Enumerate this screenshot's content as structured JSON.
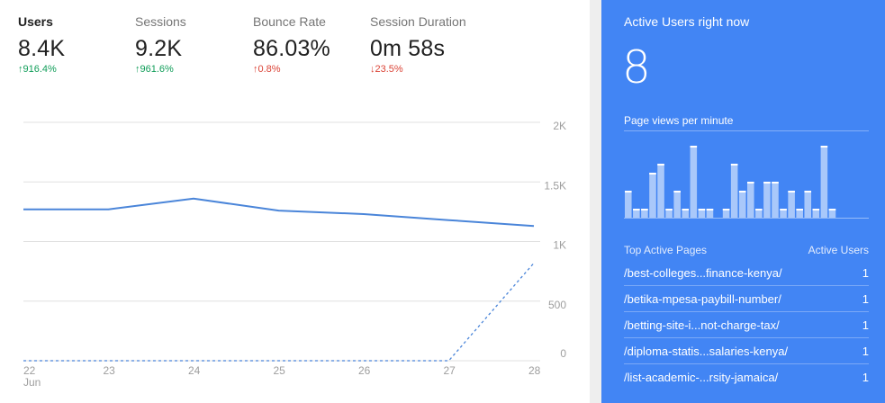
{
  "metrics": [
    {
      "label": "Users",
      "value": "8.4K",
      "change": "916.4%",
      "arrow": "↑",
      "dir": "up",
      "selected": true
    },
    {
      "label": "Sessions",
      "value": "9.2K",
      "change": "961.6%",
      "arrow": "↑",
      "dir": "up",
      "selected": false
    },
    {
      "label": "Bounce Rate",
      "value": "86.03%",
      "change": "0.8%",
      "arrow": "↑",
      "dir": "down",
      "selected": false
    },
    {
      "label": "Session Duration",
      "value": "0m 58s",
      "change": "23.5%",
      "arrow": "↓",
      "dir": "down",
      "selected": false
    }
  ],
  "chart_data": {
    "type": "line",
    "x": [
      "22",
      "23",
      "24",
      "25",
      "26",
      "27",
      "28"
    ],
    "x_sublabel": "Jun",
    "yticks": [
      "2K",
      "1.5K",
      "1K",
      "500",
      "0"
    ],
    "ylim": [
      0,
      2000
    ],
    "grid": true,
    "series": [
      {
        "values": [
          1270,
          1270,
          1360,
          1260,
          1230,
          1180,
          1130
        ],
        "style": "solid",
        "color": "#4a85d9"
      },
      {
        "values": [
          0,
          0,
          0,
          0,
          0,
          0,
          820
        ],
        "style": "dashed",
        "color": "#4a85d9"
      }
    ]
  },
  "realtime": {
    "title": "Active Users right now",
    "count": "8",
    "pageviews_title": "Page views per minute",
    "pageviews": [
      3,
      1,
      1,
      5,
      6,
      1,
      3,
      1,
      8,
      1,
      1,
      0,
      1,
      6,
      3,
      4,
      1,
      4,
      4,
      1,
      3,
      1,
      3,
      1,
      8,
      1
    ],
    "table_header_page": "Top Active Pages",
    "table_header_users": "Active Users",
    "pages": [
      {
        "page": "/best-colleges...finance-kenya/",
        "users": "1"
      },
      {
        "page": "/betika-mpesa-paybill-number/",
        "users": "1"
      },
      {
        "page": "/betting-site-i...not-charge-tax/",
        "users": "1"
      },
      {
        "page": "/diploma-statis...salaries-kenya/",
        "users": "1"
      },
      {
        "page": "/list-academic-...rsity-jamaica/",
        "users": "1"
      }
    ]
  },
  "colors": {
    "panel": "#4285f4",
    "line": "#4a85d9",
    "up": "#0f9d58",
    "down": "#db4437"
  }
}
